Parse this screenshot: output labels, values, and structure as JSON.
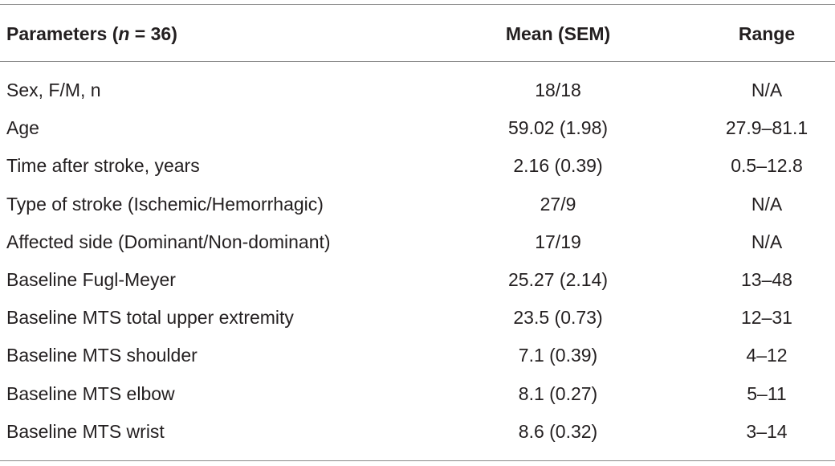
{
  "table": {
    "header": [
      {
        "prefix": "Parameters (",
        "italic": "n",
        "suffix": " = 36)"
      },
      "Mean (SEM)",
      "Range"
    ],
    "rows": [
      [
        "Sex, F/M, n",
        "18/18",
        "N/A"
      ],
      [
        "Age",
        "59.02 (1.98)",
        "27.9–81.1"
      ],
      [
        "Time after stroke, years",
        "2.16 (0.39)",
        "0.5–12.8"
      ],
      [
        "Type of stroke (Ischemic/Hemorrhagic)",
        "27/9",
        "N/A"
      ],
      [
        "Affected side (Dominant/Non-dominant)",
        "17/19",
        "N/A"
      ],
      [
        "Baseline Fugl-Meyer",
        "25.27 (2.14)",
        "13–48"
      ],
      [
        "Baseline MTS total upper extremity",
        "23.5 (0.73)",
        "12–31"
      ],
      [
        "Baseline MTS shoulder",
        "7.1 (0.39)",
        "4–12"
      ],
      [
        "Baseline MTS elbow",
        "8.1 (0.27)",
        "5–11"
      ],
      [
        "Baseline MTS wrist",
        "8.6 (0.32)",
        "3–14"
      ]
    ]
  }
}
